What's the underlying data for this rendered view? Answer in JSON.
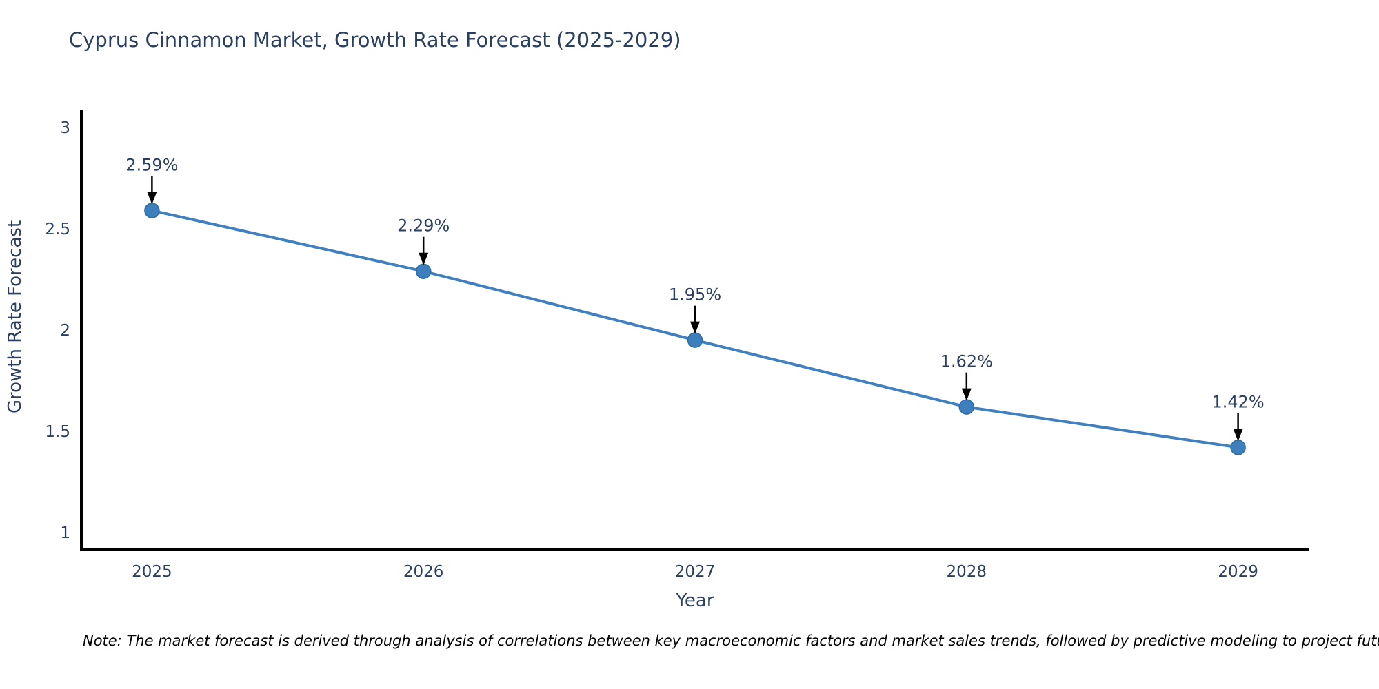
{
  "title": "Cyprus Cinnamon Market, Growth Rate Forecast (2025-2029)",
  "note": "Note: The market forecast is derived through analysis of correlations between key macroeconomic factors and market sales trends, followed by predictive modeling to project future sales",
  "chart_data": {
    "type": "line",
    "title": "Cyprus Cinnamon Market, Growth Rate Forecast (2025-2029)",
    "x": [
      2025,
      2026,
      2027,
      2028,
      2029
    ],
    "y": [
      2.59,
      2.29,
      1.95,
      1.62,
      1.42
    ],
    "point_labels": [
      "2.59%",
      "2.29%",
      "1.95%",
      "1.62%",
      "1.42%"
    ],
    "xlabel": "Year",
    "ylabel": "Growth Rate Forecast",
    "xticks": [
      "2025",
      "2026",
      "2027",
      "2028",
      "2029"
    ],
    "yticks": [
      1,
      1.5,
      2,
      2.5,
      3
    ],
    "ytick_labels": [
      "1",
      "1.5",
      "2",
      "2.5",
      "3"
    ],
    "xlim": [
      2024.74,
      2029.26
    ],
    "ylim": [
      0.918,
      3.085
    ],
    "grid": false,
    "legend": "none",
    "colors": {
      "line": "#4080bf",
      "marker": "#3d7ebd",
      "marker_edge": "#2e6da4",
      "axis": "#000000",
      "arrow": "#000000",
      "title_text": "#2a3f5f",
      "tick_text": "#2a3f5f",
      "note_text": "#000000"
    }
  }
}
